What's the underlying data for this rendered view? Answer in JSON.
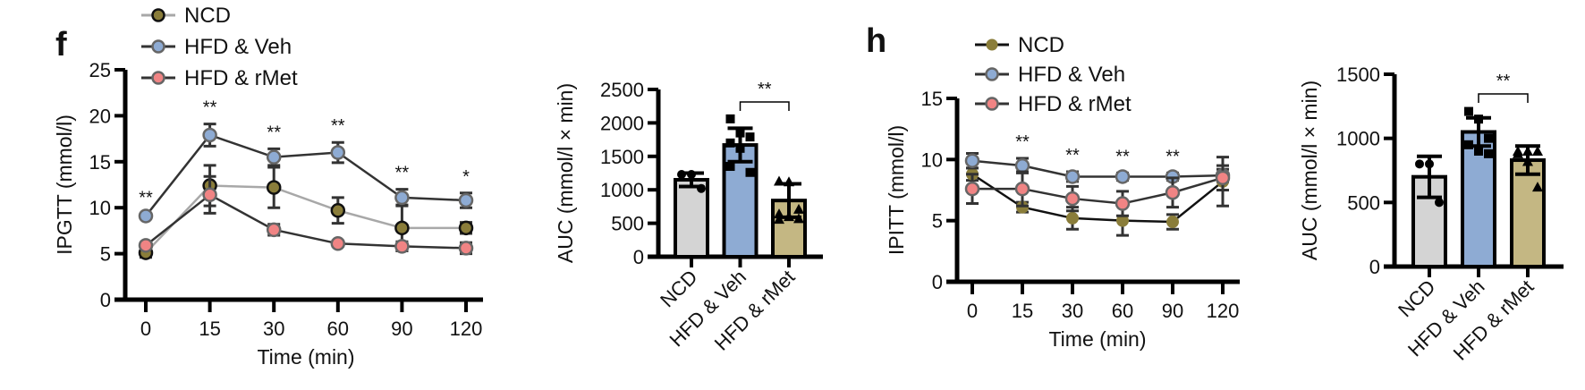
{
  "colors": {
    "NCD_marker": "#8a7d3a",
    "NCD_line_f": "#a8a8a8",
    "NCD_line_h": "#111111",
    "Veh_marker": "#8eabd3",
    "rMet_marker": "#f08484",
    "bar_NCD": "#d4d4d4",
    "bar_Veh": "#8eabd3",
    "bar_rMet": "#c4b783"
  },
  "chart_data": [
    {
      "panel": "f",
      "type": "line",
      "ylabel": "IPGTT (mmol/l)",
      "xlabel": "Time (min)",
      "categories": [
        "0",
        "15",
        "30",
        "60",
        "90",
        "120"
      ],
      "ylim": [
        0,
        25
      ],
      "yticks": [
        0,
        5,
        10,
        15,
        20,
        25
      ],
      "legend": "top-left",
      "series": [
        {
          "name": "NCD",
          "values": [
            5.1,
            12.4,
            12.2,
            9.7,
            7.8,
            7.8
          ],
          "err": [
            0.5,
            2.2,
            2.2,
            1.4,
            2.5,
            0.6
          ]
        },
        {
          "name": "HFD & Veh",
          "values": [
            9.1,
            17.9,
            15.5,
            16.0,
            11.1,
            10.8
          ],
          "err": [
            0.2,
            1.2,
            0.9,
            1.1,
            0.9,
            0.8
          ]
        },
        {
          "name": "HFD & rMet",
          "values": [
            5.9,
            11.4,
            7.6,
            6.1,
            5.8,
            5.6
          ],
          "err": [
            0.3,
            2.0,
            0.6,
            0.3,
            0.5,
            0.6
          ]
        }
      ],
      "significance": [
        "**",
        "**",
        "**",
        "**",
        "**",
        "*"
      ]
    },
    {
      "panel": "f-auc",
      "type": "bar",
      "ylabel": "AUC (mmol/l × min)",
      "categories": [
        "NCD",
        "HFD & Veh",
        "HFD & rMet"
      ],
      "ylim": [
        0,
        2500
      ],
      "yticks": [
        0,
        500,
        1000,
        1500,
        2000,
        2500
      ],
      "values": [
        1150,
        1670,
        840
      ],
      "err": [
        100,
        250,
        250
      ],
      "points": [
        [
          1230,
          1230,
          1020
        ],
        [
          2060,
          1850,
          1790,
          1700,
          1620,
          1260,
          1350
        ],
        [
          1130,
          1120,
          710,
          640,
          600,
          570,
          560
        ]
      ],
      "bracket": {
        "from": 1,
        "to": 2,
        "label": "**"
      }
    },
    {
      "panel": "h",
      "type": "line",
      "ylabel": "IPITT (mmol/l)",
      "xlabel": "Time (min)",
      "categories": [
        "0",
        "15",
        "30",
        "60",
        "90",
        "120"
      ],
      "ylim": [
        0,
        15
      ],
      "yticks": [
        0,
        5,
        10,
        15
      ],
      "legend": "top-left",
      "series": [
        {
          "name": "NCD",
          "values": [
            8.8,
            6.1,
            5.2,
            5.0,
            4.9,
            8.2
          ],
          "err": [
            0.5,
            0.4,
            0.9,
            1.2,
            0.6,
            2.0
          ]
        },
        {
          "name": "HFD & Veh",
          "values": [
            9.9,
            9.5,
            8.6,
            8.6,
            8.6,
            8.7
          ],
          "err": [
            0.6,
            0.6,
            0.4,
            0.3,
            0.3,
            0.5
          ]
        },
        {
          "name": "HFD & rMet",
          "values": [
            7.6,
            7.6,
            6.8,
            6.4,
            7.3,
            8.5
          ],
          "err": [
            1.2,
            1.4,
            1.0,
            1.0,
            1.2,
            1.0
          ]
        }
      ],
      "significance": [
        "",
        "**",
        "**",
        "**",
        "**",
        ""
      ]
    },
    {
      "panel": "h-auc",
      "type": "bar",
      "ylabel": "AUC (mmol/l × min)",
      "categories": [
        "NCD",
        "HFD & Veh",
        "HFD & rMet"
      ],
      "ylim": [
        0,
        1500
      ],
      "yticks": [
        0,
        500,
        1000,
        1500
      ],
      "values": [
        700,
        1050,
        830
      ],
      "err": [
        160,
        110,
        110
      ],
      "points": [
        [
          800,
          800,
          500
        ],
        [
          1210,
          1150,
          1000,
          950,
          900,
          880
        ],
        [
          900,
          900,
          900,
          880,
          820,
          620
        ]
      ],
      "bracket": {
        "from": 1,
        "to": 2,
        "label": "**"
      }
    }
  ],
  "labels": {
    "panel_f": "f",
    "panel_h": "h"
  }
}
